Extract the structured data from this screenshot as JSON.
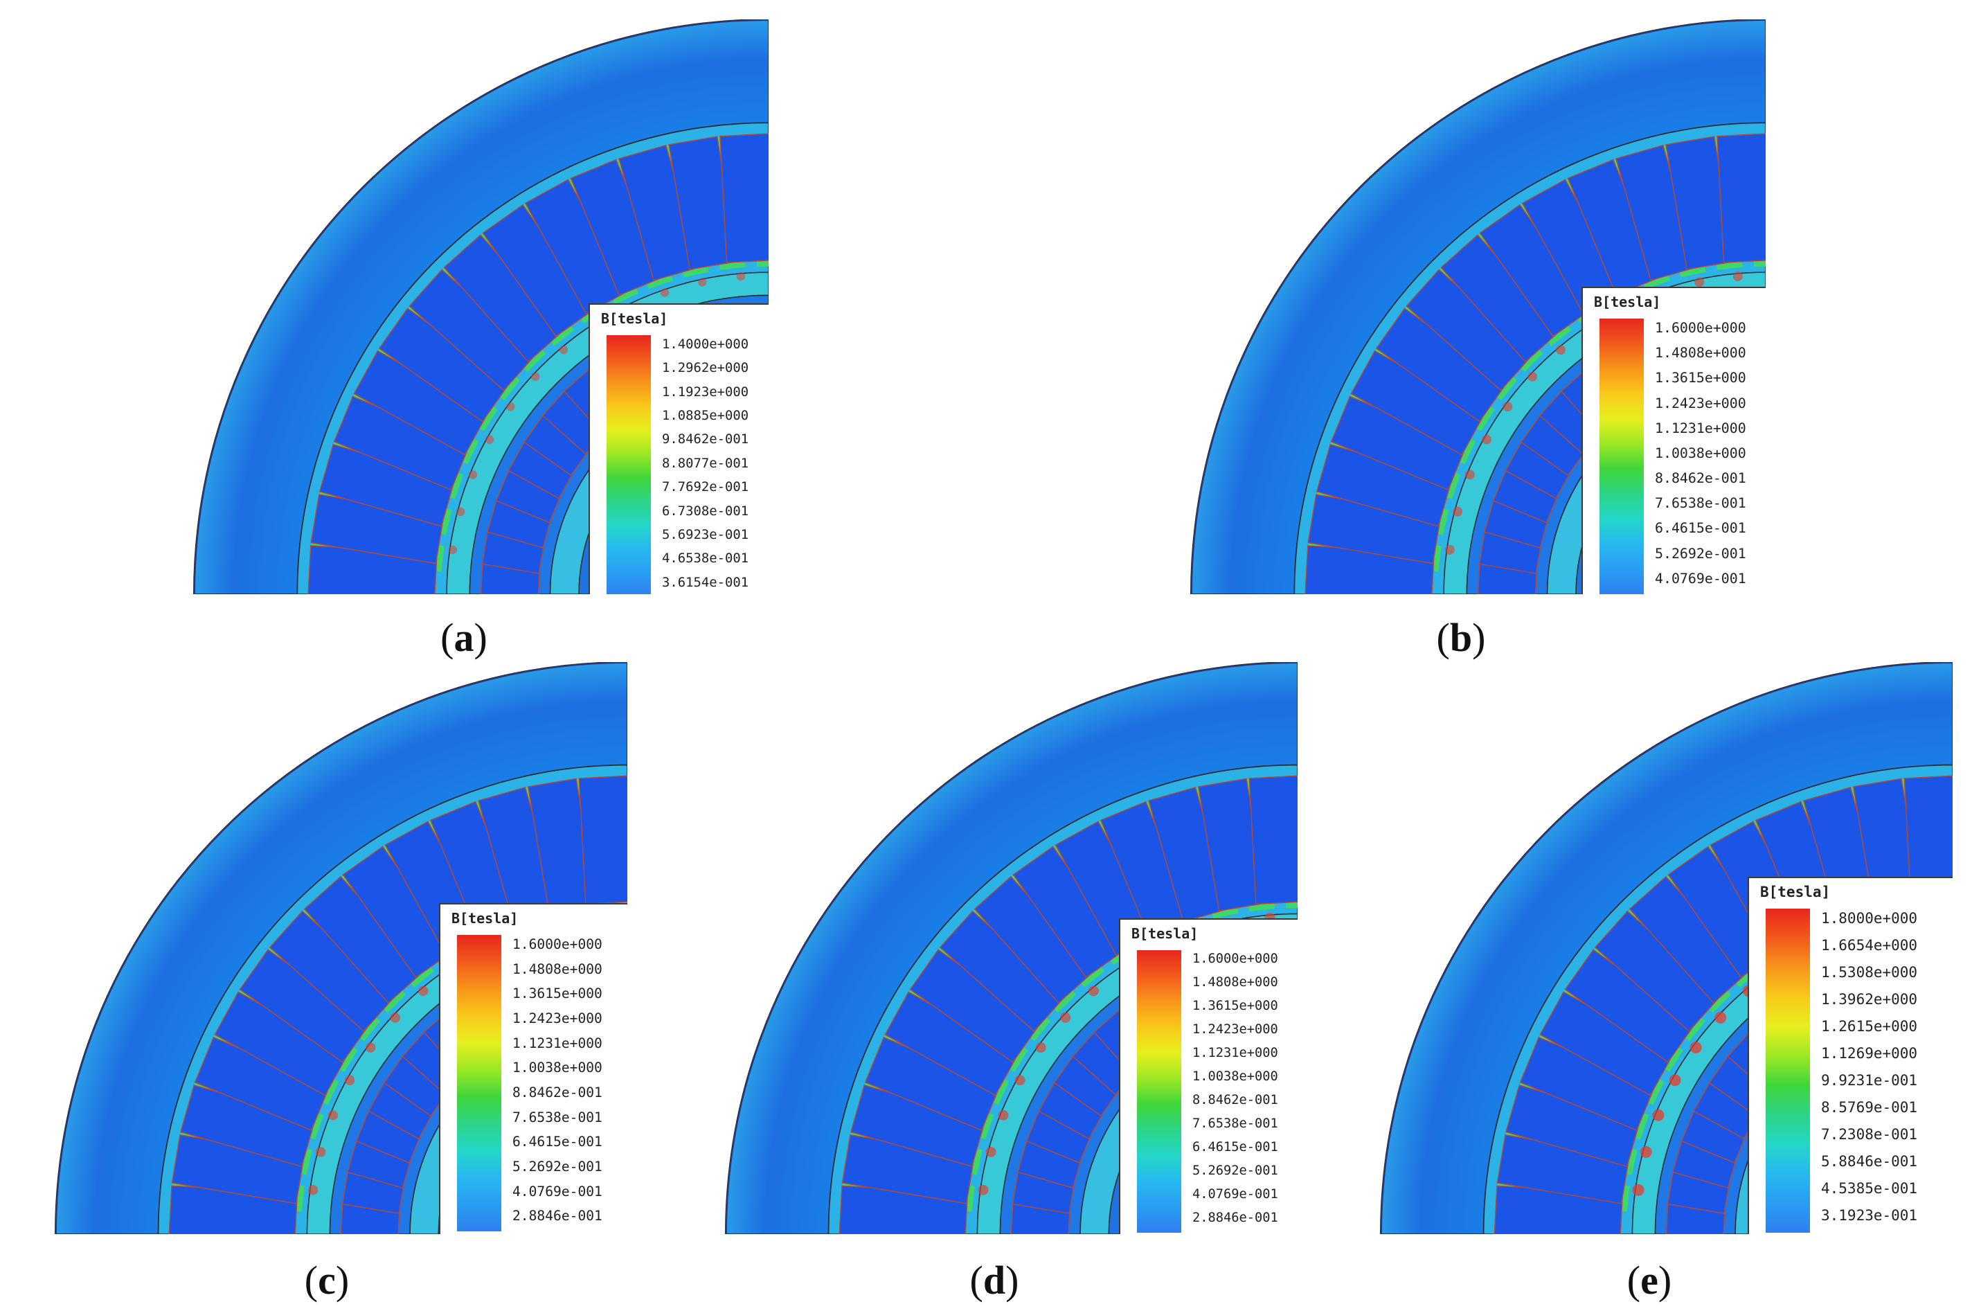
{
  "legend_title": "B[tesla]",
  "colors": {
    "background": "#0a3fd8",
    "slot": "#1a55e8",
    "teeth_low": "#2bb3e8",
    "teeth_mid": "#3fd66a",
    "yoke": "#1f78e6",
    "hot": "#e83a2a",
    "outline": "#2b2b2b"
  },
  "panels": [
    {
      "id": "a",
      "caption": "a",
      "legend_values": [
        "1.4000e+000",
        "1.2962e+000",
        "1.1923e+000",
        "1.0885e+000",
        "9.8462e-001",
        "8.8077e-001",
        "7.7692e-001",
        "6.7308e-001",
        "5.6923e-001",
        "4.6538e-001",
        "3.6154e-001"
      ]
    },
    {
      "id": "b",
      "caption": "b",
      "legend_values": [
        "1.6000e+000",
        "1.4808e+000",
        "1.3615e+000",
        "1.2423e+000",
        "1.1231e+000",
        "1.0038e+000",
        "8.8462e-001",
        "7.6538e-001",
        "6.4615e-001",
        "5.2692e-001",
        "4.0769e-001"
      ]
    },
    {
      "id": "c",
      "caption": "c",
      "legend_values": [
        "1.6000e+000",
        "1.4808e+000",
        "1.3615e+000",
        "1.2423e+000",
        "1.1231e+000",
        "1.0038e+000",
        "8.8462e-001",
        "7.6538e-001",
        "6.4615e-001",
        "5.2692e-001",
        "4.0769e-001",
        "2.8846e-001"
      ]
    },
    {
      "id": "d",
      "caption": "d",
      "legend_values": [
        "1.6000e+000",
        "1.4808e+000",
        "1.3615e+000",
        "1.2423e+000",
        "1.1231e+000",
        "1.0038e+000",
        "8.8462e-001",
        "7.6538e-001",
        "6.4615e-001",
        "5.2692e-001",
        "4.0769e-001",
        "2.8846e-001"
      ]
    },
    {
      "id": "e",
      "caption": "e",
      "legend_values": [
        "1.8000e+000",
        "1.6654e+000",
        "1.5308e+000",
        "1.3962e+000",
        "1.2615e+000",
        "1.1269e+000",
        "9.9231e-001",
        "8.5769e-001",
        "7.2308e-001",
        "5.8846e-001",
        "4.5385e-001",
        "3.1923e-001"
      ]
    }
  ]
}
